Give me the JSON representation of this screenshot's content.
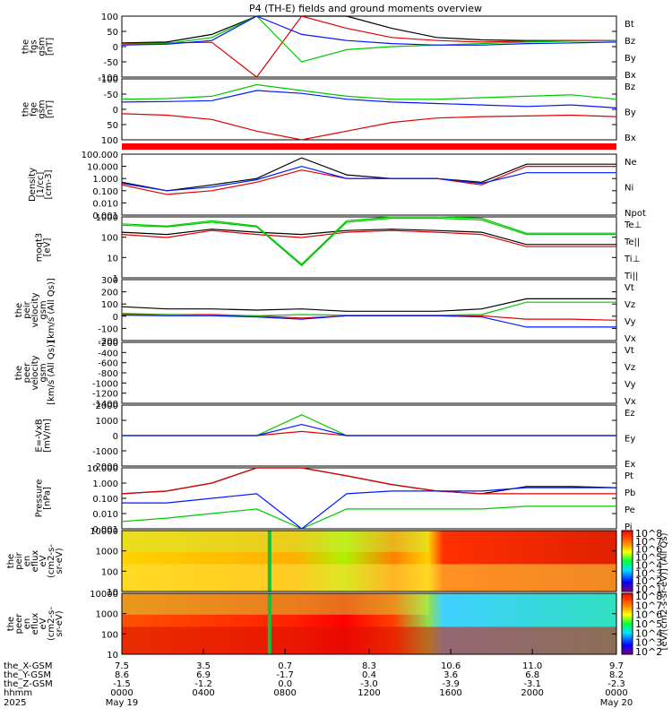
{
  "title": "P4 (TH-E) fields and ground moments overview",
  "colors": {
    "black": "#000000",
    "red": "#e00000",
    "green": "#00c800",
    "blue": "#0018ff",
    "band": "#ff0000"
  },
  "chart_data": [
    {
      "type": "line",
      "id": "p1",
      "ylabel_lines": [
        "the",
        "fgs",
        "gsm",
        "[nT]"
      ],
      "yticks": [
        "100",
        "50",
        "0",
        "-50",
        "-100"
      ],
      "ylim": [
        -100,
        100
      ],
      "legend": [
        {
          "label": "Bt",
          "color": "black"
        },
        {
          "label": "Bz",
          "color": "red"
        },
        {
          "label": "By",
          "color": "green"
        },
        {
          "label": "Bx",
          "color": "blue"
        }
      ],
      "series": [
        {
          "name": "Bt",
          "values": [
            12,
            15,
            40,
            100,
            100,
            100,
            60,
            30,
            22,
            20,
            20,
            20
          ]
        },
        {
          "name": "Bz",
          "values": [
            10,
            12,
            14,
            -100,
            100,
            60,
            30,
            20,
            15,
            18,
            20,
            20
          ]
        },
        {
          "name": "By",
          "values": [
            8,
            10,
            30,
            100,
            -50,
            -10,
            0,
            5,
            10,
            15,
            18,
            20
          ]
        },
        {
          "name": "Bx",
          "values": [
            5,
            8,
            20,
            100,
            40,
            20,
            10,
            5,
            5,
            10,
            12,
            15
          ]
        }
      ]
    },
    {
      "type": "line",
      "id": "p2",
      "ylabel_lines": [
        "the",
        "fge",
        "gsm",
        "[nT]"
      ],
      "yticks": [
        "-100",
        "-50",
        "0",
        "50",
        "100"
      ],
      "ylim": [
        -130,
        80
      ],
      "legend": [
        {
          "label": "Bz",
          "color": "red"
        },
        {
          "label": "By",
          "color": "green"
        },
        {
          "label": "Bx",
          "color": "blue"
        }
      ],
      "series": [
        {
          "name": "Bz",
          "values": [
            -40,
            -45,
            -60,
            -100,
            -130,
            -100,
            -70,
            -55,
            -50,
            -48,
            -45,
            -50
          ]
        },
        {
          "name": "By",
          "values": [
            10,
            12,
            20,
            60,
            40,
            20,
            10,
            10,
            15,
            20,
            25,
            10
          ]
        },
        {
          "name": "Bx",
          "values": [
            0,
            2,
            5,
            40,
            30,
            10,
            0,
            -5,
            -10,
            -15,
            -10,
            -20
          ]
        }
      ]
    },
    {
      "type": "line",
      "id": "p3",
      "ylabel_lines": [
        "Density",
        "[1/cc]",
        "[cm-3]"
      ],
      "yticks": [
        "100.000",
        "10.000",
        "1.000",
        "0.100",
        "0.010",
        "0.001"
      ],
      "ylim": [
        0.001,
        100
      ],
      "scale": "log",
      "legend": [
        {
          "label": "Ne",
          "color": "red"
        },
        {
          "label": "Ni",
          "color": "black"
        },
        {
          "label": "Npot",
          "color": "blue"
        }
      ],
      "series": [
        {
          "name": "Ne",
          "values": [
            0.3,
            0.05,
            0.1,
            0.5,
            5,
            1,
            1,
            1,
            0.3,
            10,
            10,
            10
          ]
        },
        {
          "name": "Ni",
          "values": [
            0.5,
            0.1,
            0.3,
            1,
            50,
            2,
            1,
            1,
            0.5,
            15,
            15,
            15
          ]
        },
        {
          "name": "Npot",
          "values": [
            0.4,
            0.1,
            0.2,
            0.8,
            10,
            1,
            1,
            1,
            0.4,
            3,
            3,
            3
          ]
        }
      ]
    },
    {
      "type": "line",
      "id": "p4",
      "ylabel_lines": [
        "moqt3",
        "[eV]"
      ],
      "yticks": [
        "1000",
        "100",
        "10",
        "1"
      ],
      "ylim": [
        1,
        3000
      ],
      "scale": "log",
      "legend": [
        {
          "label": "Te⊥",
          "color": "red"
        },
        {
          "label": "Te||",
          "color": "black"
        },
        {
          "label": "Ti⊥",
          "color": "green"
        },
        {
          "label": "Ti||",
          "color": "green"
        }
      ],
      "series": [
        {
          "name": "Te⊥",
          "values": [
            300,
            200,
            500,
            300,
            200,
            400,
            500,
            400,
            300,
            60,
            60,
            60
          ]
        },
        {
          "name": "Te||",
          "values": [
            400,
            300,
            600,
            400,
            300,
            500,
            600,
            500,
            400,
            80,
            80,
            80
          ]
        },
        {
          "name": "Ti⊥",
          "values": [
            1000,
            800,
            1500,
            800,
            5,
            1500,
            2500,
            2500,
            2000,
            300,
            300,
            300
          ]
        },
        {
          "name": "Ti||",
          "values": [
            1200,
            900,
            1800,
            900,
            6,
            1800,
            3000,
            3000,
            2500,
            350,
            350,
            350
          ]
        }
      ]
    },
    {
      "type": "line",
      "id": "p5",
      "ylabel_lines": [
        "the",
        "peir",
        "velocity",
        "gsm",
        "[km/s (All Qs)]"
      ],
      "yticks": [
        "300",
        "200",
        "100",
        "0",
        "-100",
        "-200"
      ],
      "ylim": [
        -220,
        320
      ],
      "legend": [
        {
          "label": "Vt",
          "color": "black"
        },
        {
          "label": "Vz",
          "color": "red"
        },
        {
          "label": "Vy",
          "color": "green"
        },
        {
          "label": "Vx",
          "color": "blue"
        }
      ],
      "series": [
        {
          "name": "Vt",
          "values": [
            80,
            60,
            60,
            50,
            60,
            40,
            40,
            40,
            60,
            150,
            150,
            150
          ]
        },
        {
          "name": "Vz",
          "values": [
            20,
            10,
            10,
            0,
            -20,
            0,
            0,
            0,
            0,
            -30,
            -30,
            -40
          ]
        },
        {
          "name": "Vy",
          "values": [
            10,
            10,
            5,
            0,
            10,
            5,
            5,
            5,
            10,
            120,
            120,
            120
          ]
        },
        {
          "name": "Vx",
          "values": [
            5,
            0,
            0,
            -10,
            -30,
            0,
            0,
            0,
            -10,
            -100,
            -100,
            -100
          ]
        }
      ]
    },
    {
      "type": "line",
      "id": "p6",
      "ylabel_lines": [
        "the",
        "peer",
        "velocity",
        "gsm",
        "[km/s (All Qs)]"
      ],
      "yticks": [
        "-200",
        "-400",
        "-600",
        "-800",
        "-1000",
        "-1200",
        "-1400"
      ],
      "ylim": [
        -1450,
        -150
      ],
      "legend": [
        {
          "label": "Vt",
          "color": "black"
        },
        {
          "label": "Vz",
          "color": "red"
        },
        {
          "label": "Vy",
          "color": "green"
        },
        {
          "label": "Vx",
          "color": "blue"
        }
      ],
      "series": []
    },
    {
      "type": "line",
      "id": "p7",
      "ylabel_lines": [
        "E=-VxB",
        "[mV/m]"
      ],
      "yticks": [
        "2000",
        "1000",
        "0",
        "-1000",
        "-2000"
      ],
      "ylim": [
        -2200,
        2200
      ],
      "legend": [
        {
          "label": "Ez",
          "color": "red"
        },
        {
          "label": "Ey",
          "color": "green"
        },
        {
          "label": "Ex",
          "color": "blue"
        }
      ],
      "series": [
        {
          "name": "Ez",
          "values": [
            0,
            0,
            0,
            0,
            300,
            0,
            0,
            0,
            0,
            0,
            0,
            0
          ]
        },
        {
          "name": "Ey",
          "values": [
            0,
            0,
            0,
            0,
            1500,
            0,
            0,
            0,
            0,
            0,
            0,
            0
          ]
        },
        {
          "name": "Ex",
          "values": [
            0,
            0,
            0,
            0,
            800,
            0,
            0,
            0,
            0,
            0,
            0,
            0
          ]
        }
      ]
    },
    {
      "type": "line",
      "id": "p8",
      "ylabel_lines": [
        "Pressure",
        "[nPa]"
      ],
      "yticks": [
        "10.000",
        "1.000",
        "0.100",
        "0.010",
        "0.001"
      ],
      "ylim": [
        0.001,
        10
      ],
      "scale": "log",
      "legend": [
        {
          "label": "Pt",
          "color": "black"
        },
        {
          "label": "Pb",
          "color": "red"
        },
        {
          "label": "Pe",
          "color": "green"
        },
        {
          "label": "Pi",
          "color": "blue"
        }
      ],
      "series": [
        {
          "name": "Pt",
          "values": [
            0.2,
            0.3,
            1,
            10,
            10,
            3,
            0.8,
            0.3,
            0.2,
            0.6,
            0.6,
            0.5
          ]
        },
        {
          "name": "Pb",
          "values": [
            0.2,
            0.3,
            1,
            10,
            10,
            3,
            0.8,
            0.3,
            0.2,
            0.2,
            0.2,
            0.2
          ]
        },
        {
          "name": "Pe",
          "values": [
            0.003,
            0.005,
            0.01,
            0.02,
            0.001,
            0.02,
            0.02,
            0.02,
            0.02,
            0.03,
            0.03,
            0.03
          ]
        },
        {
          "name": "Pi",
          "values": [
            0.05,
            0.05,
            0.1,
            0.2,
            0.001,
            0.2,
            0.3,
            0.3,
            0.3,
            0.5,
            0.5,
            0.5
          ]
        }
      ]
    },
    {
      "type": "heatmap",
      "id": "p9",
      "ylabel_lines": [
        "the",
        "peir",
        "en",
        "eflux",
        "eV",
        "(cm2-s-",
        "sr-eV)"
      ],
      "yticks": [
        "10000",
        "1000",
        "100",
        "10"
      ],
      "ylim": [
        5,
        30000
      ],
      "scale": "log"
    },
    {
      "type": "heatmap",
      "id": "p10",
      "ylabel_lines": [
        "the",
        "peer",
        "en",
        "eflux",
        "eV",
        "(cm2-s-",
        "sr-eV)"
      ],
      "yticks": [
        "10000",
        "1000",
        "100",
        "10"
      ],
      "ylim": [
        5,
        30000
      ],
      "scale": "log"
    }
  ],
  "colorbar": {
    "ticks": [
      "10^8",
      "10^7",
      "10^6",
      "10^5",
      "10^4",
      "10^3",
      "10^2",
      "10^1"
    ],
    "ticks2": [
      "10^8",
      "10^7",
      "10^6",
      "10^5",
      "10^4",
      "10^3",
      "10^2"
    ],
    "label": "[eV/(cm2-s-sr-eV)] (All Qs)"
  },
  "xaxis": {
    "rows": [
      {
        "label": "the_X-GSM",
        "values": [
          "7.5",
          "3.5",
          "0.7",
          "8.3",
          "10.6",
          "11.0",
          "9.7"
        ]
      },
      {
        "label": "the_Y-GSM",
        "values": [
          "8.6",
          "6.9",
          "-1.7",
          "0.4",
          "3.6",
          "6.8",
          "8.2"
        ]
      },
      {
        "label": "the_Z-GSM",
        "values": [
          "-1.5",
          "-1.2",
          "0.0",
          "-3.0",
          "-3.9",
          "-3.1",
          "-2.3"
        ]
      },
      {
        "label": "hhmm",
        "values": [
          "0000",
          "0400",
          "0800",
          "1200",
          "1600",
          "2000",
          "0000"
        ]
      },
      {
        "label": "2025",
        "values": [
          "May 19",
          "",
          "",
          "",
          "",
          "",
          "May 20"
        ]
      }
    ]
  }
}
